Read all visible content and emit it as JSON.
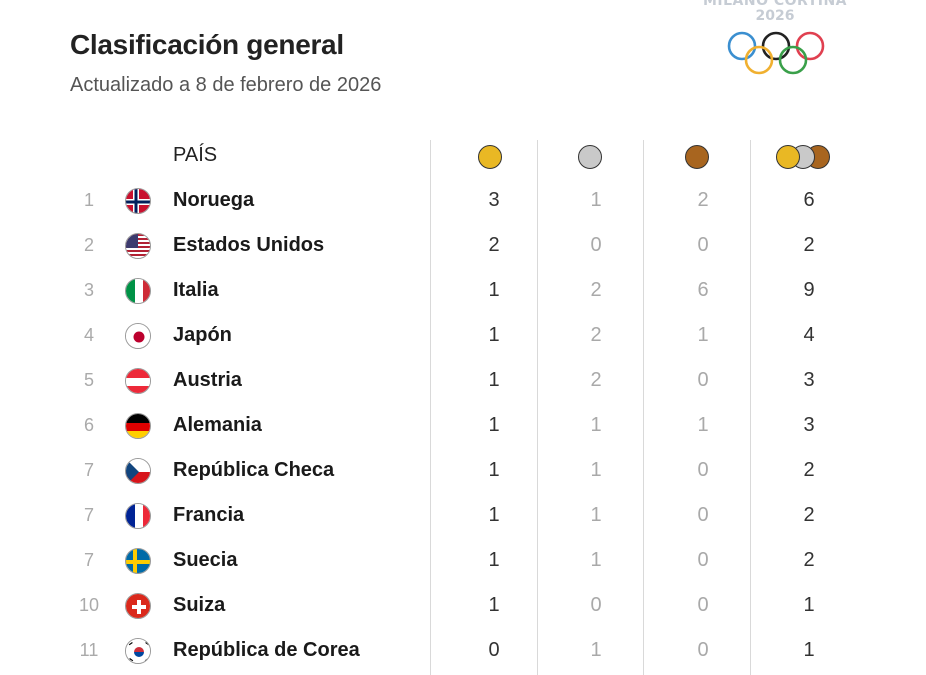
{
  "header": {
    "title": "Clasificación general",
    "subtitle": "Actualizado a 8 de febrero de 2026",
    "logo_name": "MILANO CORTINA",
    "logo_year": "2026"
  },
  "table": {
    "country_header": "PAÍS",
    "medal_colors": {
      "gold": "#e9b824",
      "silver": "#c9c9c9",
      "bronze": "#a8651f"
    },
    "rows": [
      {
        "rank": "1",
        "country": "Noruega",
        "flag": "flag-norway-icon",
        "gold": "3",
        "silver": "1",
        "bronze": "2",
        "total": "6"
      },
      {
        "rank": "2",
        "country": "Estados Unidos",
        "flag": "flag-usa-icon",
        "gold": "2",
        "silver": "0",
        "bronze": "0",
        "total": "2"
      },
      {
        "rank": "3",
        "country": "Italia",
        "flag": "flag-italy-icon",
        "gold": "1",
        "silver": "2",
        "bronze": "6",
        "total": "9"
      },
      {
        "rank": "4",
        "country": "Japón",
        "flag": "flag-japan-icon",
        "gold": "1",
        "silver": "2",
        "bronze": "1",
        "total": "4"
      },
      {
        "rank": "5",
        "country": "Austria",
        "flag": "flag-austria-icon",
        "gold": "1",
        "silver": "2",
        "bronze": "0",
        "total": "3"
      },
      {
        "rank": "6",
        "country": "Alemania",
        "flag": "flag-germany-icon",
        "gold": "1",
        "silver": "1",
        "bronze": "1",
        "total": "3"
      },
      {
        "rank": "7",
        "country": "República Checa",
        "flag": "flag-czechia-icon",
        "gold": "1",
        "silver": "1",
        "bronze": "0",
        "total": "2"
      },
      {
        "rank": "7",
        "country": "Francia",
        "flag": "flag-france-icon",
        "gold": "1",
        "silver": "1",
        "bronze": "0",
        "total": "2"
      },
      {
        "rank": "7",
        "country": "Suecia",
        "flag": "flag-sweden-icon",
        "gold": "1",
        "silver": "1",
        "bronze": "0",
        "total": "2"
      },
      {
        "rank": "10",
        "country": "Suiza",
        "flag": "flag-switzerland-icon",
        "gold": "1",
        "silver": "0",
        "bronze": "0",
        "total": "1"
      },
      {
        "rank": "11",
        "country": "República de Corea",
        "flag": "flag-korea-icon",
        "gold": "0",
        "silver": "1",
        "bronze": "0",
        "total": "1"
      }
    ]
  }
}
